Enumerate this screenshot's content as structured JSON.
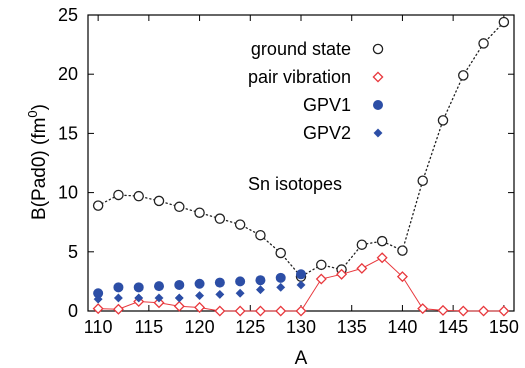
{
  "chart_data": {
    "type": "scatter",
    "title": "",
    "xlabel": "A",
    "ylabel": "B(Pad0)    (fm",
    "ylabel_superscript": "0",
    "ylabel_close": ")",
    "xlim": [
      109,
      151
    ],
    "ylim": [
      0,
      25
    ],
    "xticks": [
      110,
      115,
      120,
      125,
      130,
      135,
      140,
      145,
      150
    ],
    "yticks": [
      0,
      5,
      10,
      15,
      20,
      25
    ],
    "grid": false,
    "legend_position": "top-right",
    "annotation": "Sn isotopes",
    "series": [
      {
        "name": "ground state",
        "marker": "open-circle",
        "line": "dotted",
        "color": "#222222",
        "x": [
          110,
          112,
          114,
          116,
          118,
          120,
          122,
          124,
          126,
          128,
          130,
          132,
          134,
          136,
          138,
          140,
          142,
          144,
          146,
          148,
          150
        ],
        "y": [
          8.9,
          9.8,
          9.7,
          9.3,
          8.8,
          8.3,
          7.8,
          7.3,
          6.4,
          4.9,
          2.9,
          3.9,
          3.5,
          5.6,
          5.9,
          5.1,
          11.0,
          16.1,
          19.9,
          22.6,
          24.4
        ]
      },
      {
        "name": "pair vibration",
        "marker": "open-diamond",
        "line": "solid",
        "color": "#e8383d",
        "x": [
          110,
          112,
          114,
          116,
          118,
          120,
          122,
          124,
          126,
          128,
          130,
          132,
          134,
          136,
          138,
          140,
          142,
          144,
          146,
          148,
          150
        ],
        "y": [
          0.2,
          0.15,
          0.8,
          0.7,
          0.4,
          0.3,
          0.0,
          0.0,
          0.0,
          0.0,
          0.0,
          2.7,
          3.1,
          3.6,
          4.5,
          2.9,
          0.2,
          0.05,
          0.0,
          0.0,
          0.0
        ]
      },
      {
        "name": "GPV1",
        "marker": "filled-circle",
        "line": "none",
        "color": "#2c4ea6",
        "x": [
          110,
          112,
          114,
          116,
          118,
          120,
          122,
          124,
          126,
          128,
          130
        ],
        "y": [
          1.5,
          2.0,
          2.0,
          2.1,
          2.2,
          2.3,
          2.4,
          2.5,
          2.6,
          2.8,
          3.1
        ]
      },
      {
        "name": "GPV2",
        "marker": "filled-diamond",
        "line": "none",
        "color": "#2c4ea6",
        "x": [
          110,
          112,
          114,
          116,
          118,
          120,
          122,
          124,
          126,
          128,
          130
        ],
        "y": [
          1.0,
          1.1,
          1.1,
          1.1,
          1.1,
          1.3,
          1.4,
          1.5,
          1.8,
          2.0,
          2.2
        ]
      }
    ]
  }
}
